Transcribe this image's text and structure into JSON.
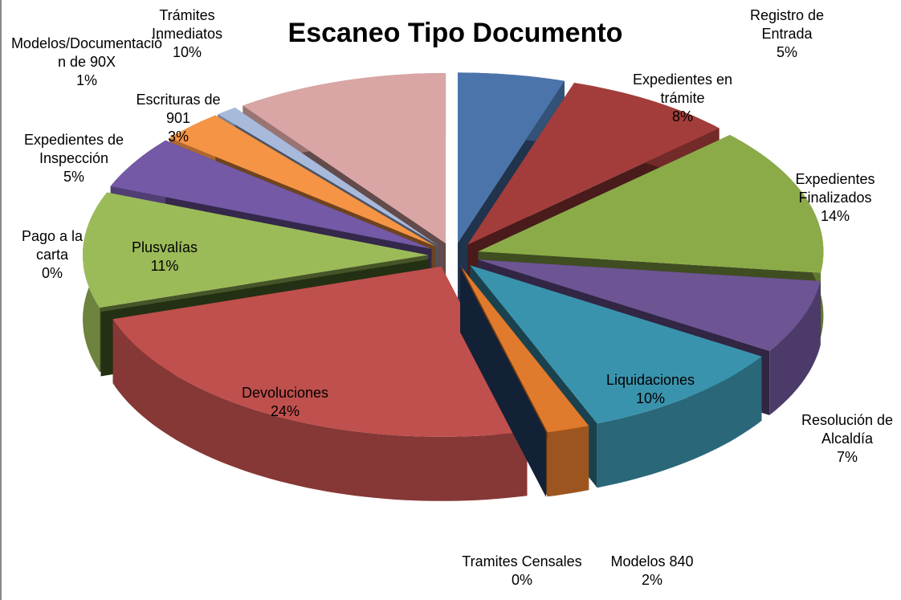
{
  "chart_data": {
    "type": "pie3d",
    "title": "Escaneo Tipo Documento",
    "categories": [
      "Registro de Entrada",
      "Expedientes en trámite",
      "Expedientes Finalizados",
      "Resolución de Alcaldía",
      "Liquidaciones",
      "Modelos 840",
      "Tramites Censales",
      "Devoluciones",
      "Pago a la carta",
      "Plusvalías",
      "Expedientes de Inspección",
      "Escrituras de 901",
      "Modelos/Documentación de 90X",
      "Trámites Inmediatos"
    ],
    "values": [
      5,
      8,
      14,
      7,
      10,
      2,
      0,
      24,
      0,
      11,
      5,
      3,
      1,
      10
    ],
    "value_labels": [
      "5%",
      "8%",
      "14%",
      "7%",
      "10%",
      "2%",
      "0%",
      "24%",
      "0%",
      "11%",
      "5%",
      "3%",
      "1%",
      "10%"
    ],
    "colors": [
      "#4a74aa",
      "#a33d3b",
      "#8bab48",
      "#6d5594",
      "#3a93ad",
      "#e07a2c",
      "#2b4a7a",
      "#c0504d",
      "#4d6b2a",
      "#9bbb59",
      "#7459a6",
      "#f59445",
      "#a8badc",
      "#d9a6a5"
    ]
  }
}
